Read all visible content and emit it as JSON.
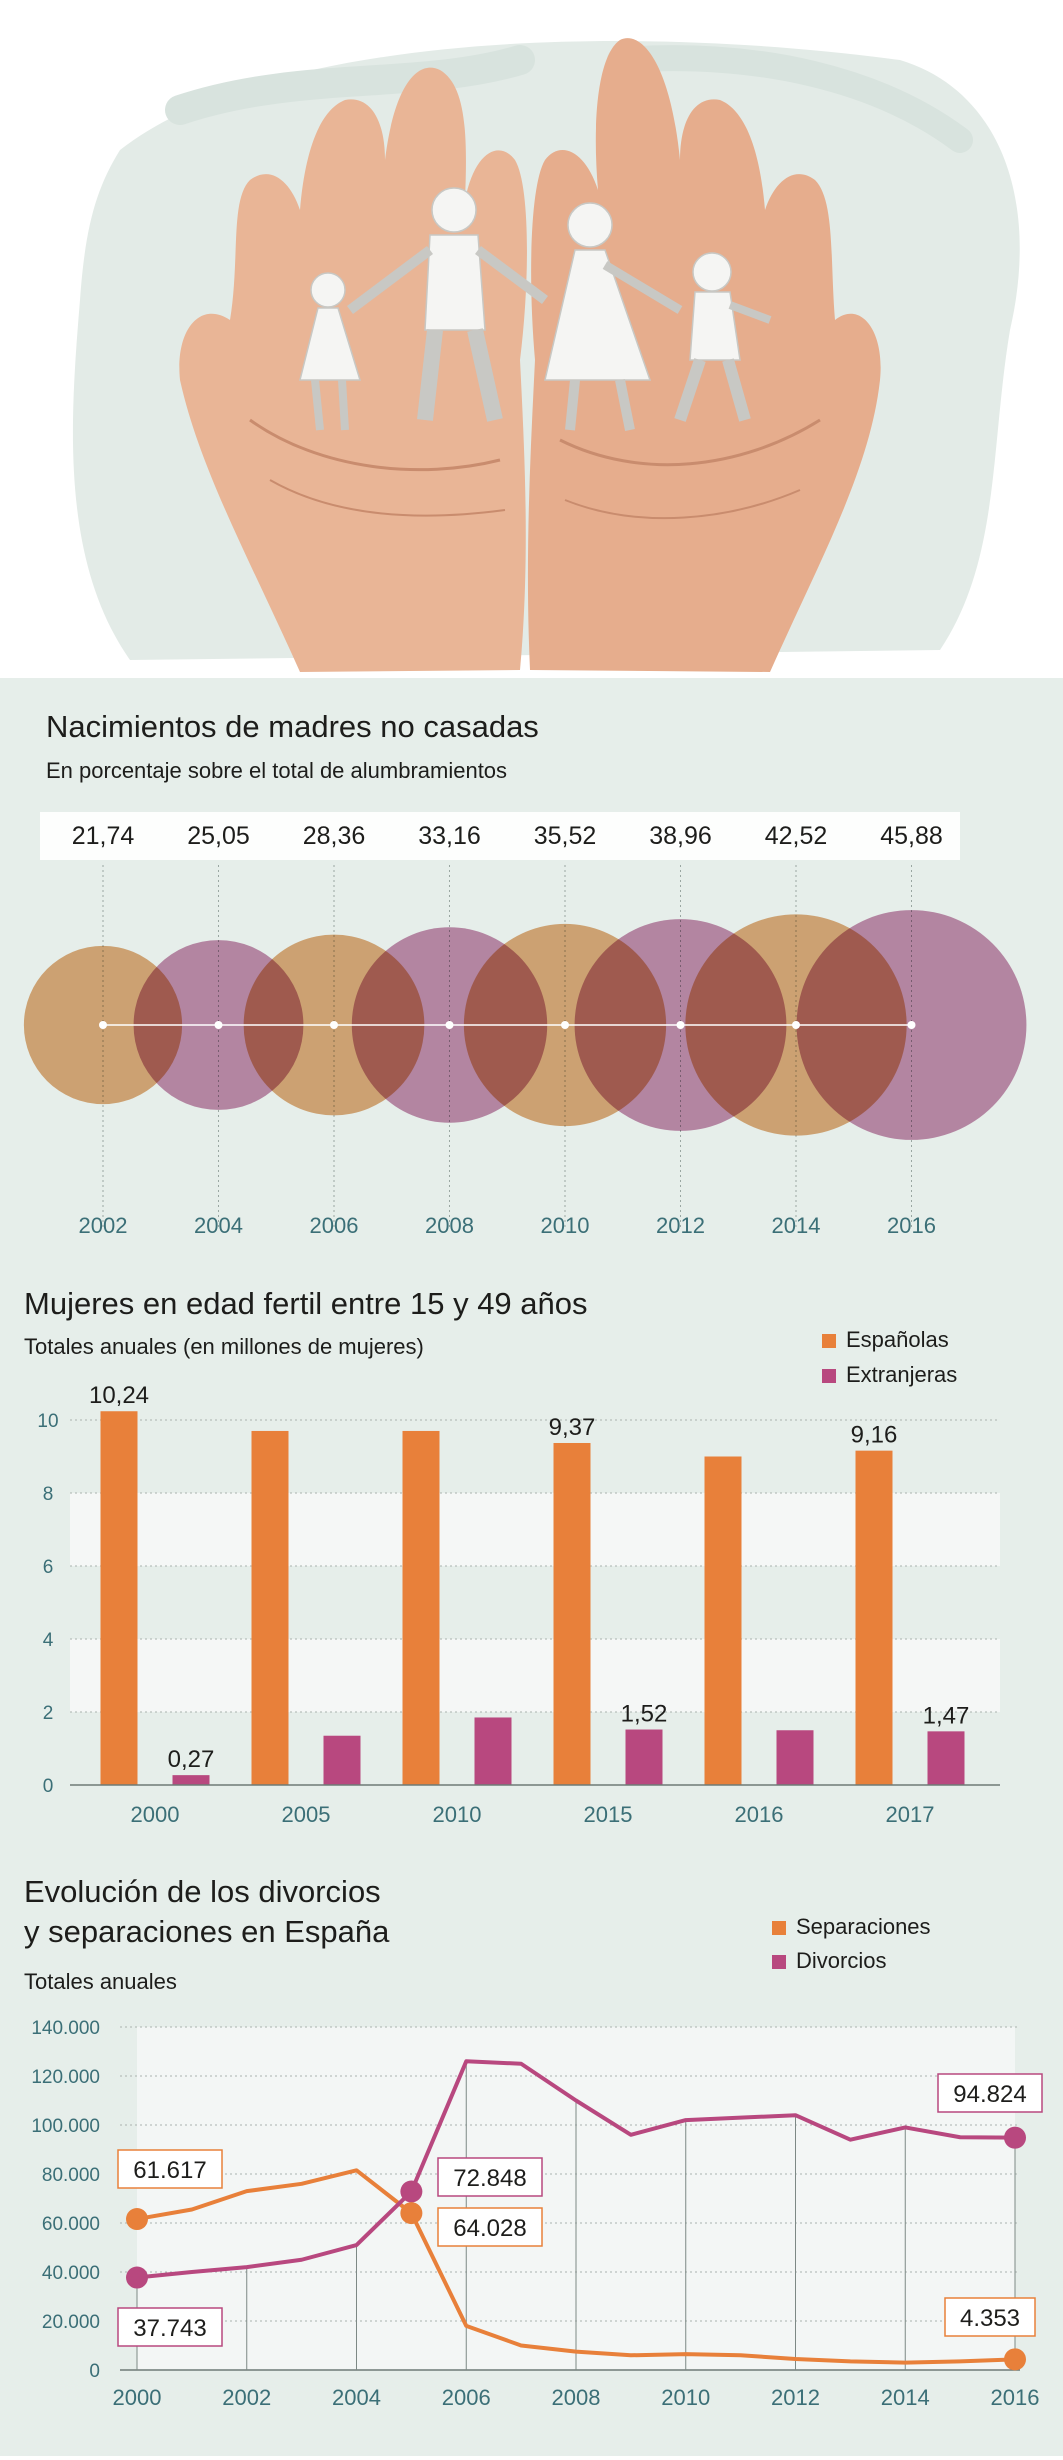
{
  "colors": {
    "orange": "#e8803a",
    "purple": "#b8487f",
    "circle_orange": "#e0a46e",
    "circle_purple": "#bd7aa2",
    "teal_text": "#3b6f77"
  },
  "hero": {
    "icon": "family-in-hands-illustration"
  },
  "chart_data": [
    {
      "type": "bubble",
      "title": "Nacimientos de madres no casadas",
      "subtitle": "En porcentaje sobre el total de alumbramientos",
      "x": [
        "2002",
        "2004",
        "2006",
        "2008",
        "2010",
        "2012",
        "2014",
        "2016"
      ],
      "values": [
        21.74,
        25.05,
        28.36,
        33.16,
        35.52,
        38.96,
        42.52,
        45.88
      ],
      "value_labels": [
        "21,74",
        "25,05",
        "28,36",
        "33,16",
        "35,52",
        "38,96",
        "42,52",
        "45,88"
      ]
    },
    {
      "type": "bar",
      "title": "Mujeres en edad fertil entre 15 y 49 años",
      "subtitle": "Totales anuales (en millones de mujeres)",
      "categories": [
        "2000",
        "2005",
        "2010",
        "2015",
        "2016",
        "2017"
      ],
      "series": [
        {
          "name": "Españolas",
          "values": [
            10.24,
            9.7,
            9.7,
            9.37,
            9.0,
            9.16
          ],
          "labels": [
            "10,24",
            "",
            "",
            "9,37",
            "",
            "9,16"
          ]
        },
        {
          "name": "Extranjeras",
          "values": [
            0.27,
            1.35,
            1.85,
            1.52,
            1.5,
            1.47
          ],
          "labels": [
            "0,27",
            "",
            "",
            "1,52",
            "",
            "1,47"
          ]
        }
      ],
      "ylim": [
        0,
        10
      ],
      "yticks": [
        "0",
        "2",
        "4",
        "6",
        "8",
        "10"
      ],
      "legend": "top-right"
    },
    {
      "type": "line",
      "title_lines": [
        "Evolución de los divorcios",
        "y separaciones en España"
      ],
      "subtitle": "Totales anuales",
      "x": [
        2000,
        2001,
        2002,
        2003,
        2004,
        2005,
        2006,
        2007,
        2008,
        2009,
        2010,
        2011,
        2012,
        2013,
        2014,
        2015,
        2016
      ],
      "xticks": [
        "2000",
        "2002",
        "2004",
        "2006",
        "2008",
        "2010",
        "2012",
        "2014",
        "2016"
      ],
      "series": [
        {
          "name": "Separaciones",
          "values": [
            61617,
            65500,
            73000,
            76000,
            81500,
            64028,
            18000,
            10000,
            7500,
            6000,
            6500,
            6000,
            4500,
            3500,
            3000,
            3500,
            4353
          ]
        },
        {
          "name": "Divorcios",
          "values": [
            37743,
            40000,
            42000,
            45000,
            51000,
            72848,
            126000,
            125000,
            110000,
            96000,
            102000,
            103000,
            104000,
            94000,
            99000,
            95000,
            94824
          ]
        }
      ],
      "callouts": [
        {
          "series": "Separaciones",
          "x": 2000,
          "label": "61.617"
        },
        {
          "series": "Divorcios",
          "x": 2000,
          "label": "37.743"
        },
        {
          "series": "Divorcios",
          "x": 2005,
          "label": "72.848"
        },
        {
          "series": "Separaciones",
          "x": 2005,
          "label": "64.028"
        },
        {
          "series": "Divorcios",
          "x": 2016,
          "label": "94.824"
        },
        {
          "series": "Separaciones",
          "x": 2016,
          "label": "4.353"
        }
      ],
      "ylim": [
        0,
        140000
      ],
      "yticks": [
        "0",
        "20.000",
        "40.000",
        "60.000",
        "80.000",
        "100.000",
        "120.000",
        "140.000"
      ],
      "legend": "top-right"
    }
  ]
}
